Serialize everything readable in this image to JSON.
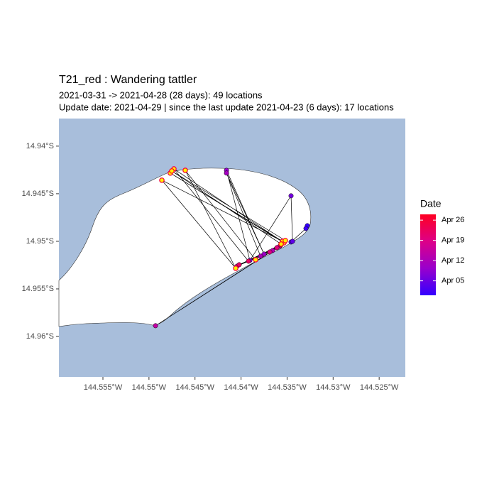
{
  "chart_data": {
    "type": "scatter",
    "title": "T21_red  :  Wandering tattler",
    "subtitle": [
      "2021-03-31 -> 2021-04-28 (28 days): 49 locations",
      "Update date: 2021-04-29 |  since the last update 2021-04-23 (6 days): 17 locations"
    ],
    "xlim": [
      -144.55978,
      -144.52216
    ],
    "ylim": [
      -14.96425,
      -14.9371
    ],
    "xticks": [
      {
        "value": -144.555,
        "label": "144.555°W"
      },
      {
        "value": -144.55,
        "label": "144.55°W"
      },
      {
        "value": -144.545,
        "label": "144.545°W"
      },
      {
        "value": -144.54,
        "label": "144.54°W"
      },
      {
        "value": -144.535,
        "label": "144.535°W"
      },
      {
        "value": -144.53,
        "label": "144.53°W"
      },
      {
        "value": -144.525,
        "label": "144.525°W"
      }
    ],
    "yticks": [
      {
        "value": -14.94,
        "label": "14.94°S"
      },
      {
        "value": -14.945,
        "label": "14.945°S"
      },
      {
        "value": -14.95,
        "label": "14.95°S"
      },
      {
        "value": -14.955,
        "label": "14.955°S"
      },
      {
        "value": -14.96,
        "label": "14.96°S"
      }
    ],
    "x": [
      -144.5328,
      -144.53295,
      -144.53457,
      -144.53441,
      -144.53457,
      -144.53904,
      -144.54158,
      -144.5375,
      -144.54158,
      -144.53788,
      -144.53657,
      -144.54929,
      -144.5358,
      -144.54043,
      -144.53688,
      -144.53611,
      -144.53565,
      -144.5402,
      -144.53919,
      -144.54729,
      -144.53534,
      -144.54768,
      -144.53549,
      -144.5486,
      -144.54058,
      -144.54606,
      -144.53842,
      -144.53519,
      -144.54752,
      -144.53565
    ],
    "y": [
      -14.94836,
      -14.94865,
      -14.95007,
      -14.95,
      -14.94522,
      -14.95201,
      -14.94254,
      -14.95134,
      -14.94283,
      -14.95156,
      -14.95097,
      -14.95887,
      -14.95052,
      -14.95261,
      -14.95112,
      -14.95067,
      -14.95037,
      -14.95246,
      -14.95209,
      -14.94239,
      -14.95015,
      -14.94283,
      -14.95,
      -14.94358,
      -14.95283,
      -14.94254,
      -14.95194,
      -14.94992,
      -14.94261,
      -14.95029
    ],
    "dates": [
      "2021-03-31",
      "2021-04-01",
      "2021-04-03",
      "2021-04-04",
      "2021-04-06",
      "2021-04-07",
      "2021-04-09",
      "2021-04-10",
      "2021-04-11",
      "2021-04-12",
      "2021-04-13",
      "2021-04-15",
      "2021-04-16",
      "2021-04-18",
      "2021-04-19",
      "2021-04-20",
      "2021-04-21",
      "2021-04-22",
      "2021-04-22",
      "2021-04-23",
      "2021-04-24",
      "2021-04-24",
      "2021-04-25",
      "2021-04-25",
      "2021-04-26",
      "2021-04-26",
      "2021-04-27",
      "2021-04-27",
      "2021-04-28",
      "2021-04-28"
    ],
    "recent_from": "2021-04-23",
    "recent_fill": "#ffee00",
    "track_color": "#000000",
    "water_color": "#a8bedb",
    "land_color": "#ffffff",
    "legend_title": "Date",
    "clim": [
      "2021-03-31",
      "2021-04-28"
    ],
    "colors": [
      "#3300ff",
      "#9900cc",
      "#dd0088",
      "#ff0022"
    ],
    "cticks": [
      {
        "value": "2021-04-05",
        "label": "Apr 05"
      },
      {
        "value": "2021-04-12",
        "label": "Apr 12"
      },
      {
        "value": "2021-04-19",
        "label": "Apr 19"
      },
      {
        "value": "2021-04-26",
        "label": "Apr 26"
      }
    ]
  }
}
